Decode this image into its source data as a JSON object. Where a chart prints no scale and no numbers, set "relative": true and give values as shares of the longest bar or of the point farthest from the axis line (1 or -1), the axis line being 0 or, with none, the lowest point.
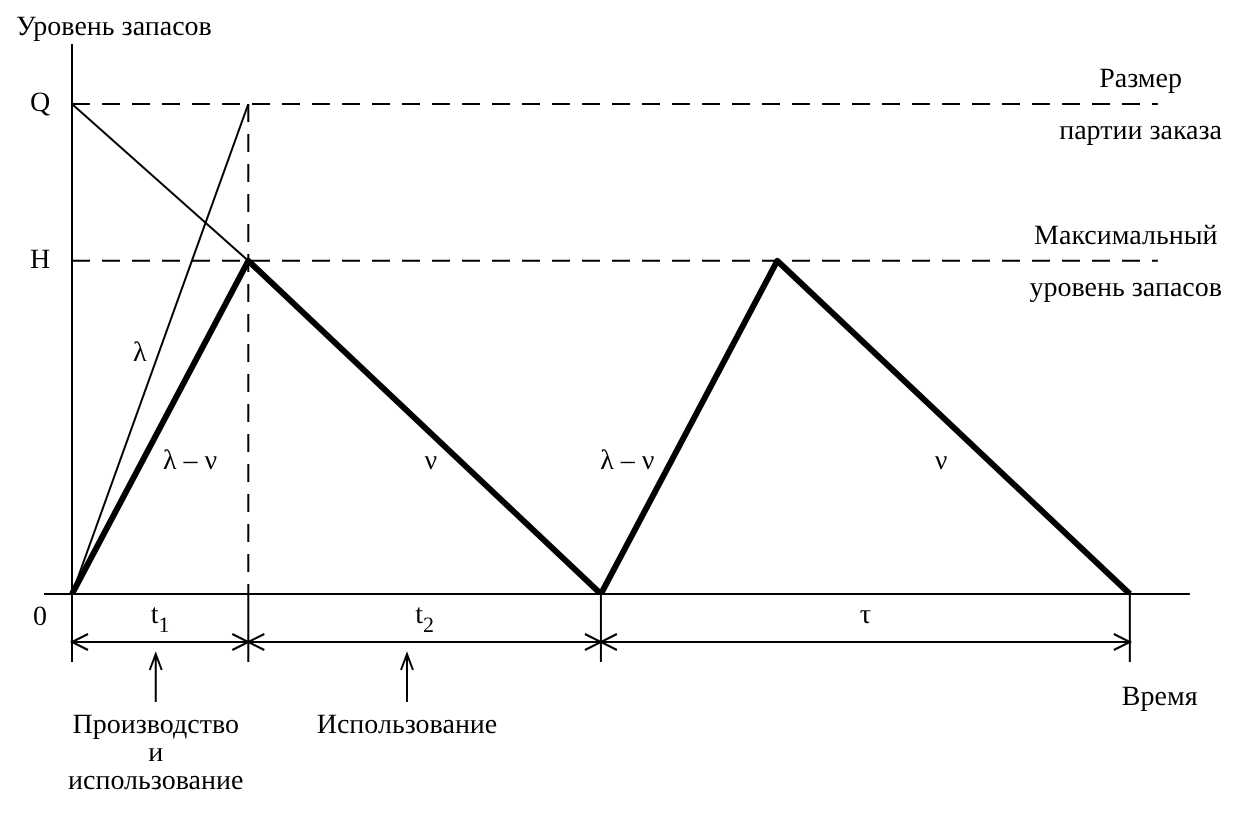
{
  "chart_data": {
    "type": "line",
    "ylabel": "Уровень запасов",
    "xlabel": "Время",
    "relative": true,
    "tick_labels": false,
    "legend": false,
    "marker": "none",
    "line_style": "solid",
    "categories": [
      null,
      null,
      null,
      null,
      null,
      null,
      null,
      null,
      null,
      null,
      null,
      null,
      null,
      null
    ],
    "series": [
      {
        "color": "#000000",
        "values": [
          0,
          null,
          0.68,
          null,
          null,
          null,
          0,
          null,
          0.68,
          null,
          null,
          null,
          0,
          null
        ]
      },
      {
        "color": "#000000",
        "values": [
          0,
          null,
          1,
          null,
          null,
          null,
          null,
          null,
          null,
          null,
          null,
          null,
          null,
          null
        ]
      },
      {
        "color": "#000000",
        "values": [
          1,
          null,
          0.68,
          null,
          null,
          null,
          null,
          null,
          null,
          null,
          null,
          null,
          null,
          null
        ]
      }
    ],
    "ref_lines": [
      {
        "axis": "y",
        "value": 1,
        "label": "Размер партии заказа",
        "color": "#000000",
        "line_style": "dashed"
      },
      {
        "axis": "y",
        "value": 0.68,
        "label": "Максимальный уровень запасов",
        "color": "#000000",
        "line_style": "dashed"
      }
    ],
    "annotations": [
      "Q",
      "H",
      "0",
      "λ",
      "λ – ν",
      "ν",
      "λ – ν",
      "ν",
      "t$_{1}$",
      "t$_{2}$",
      "τ",
      "Производство и использование",
      "Использование"
    ]
  }
}
